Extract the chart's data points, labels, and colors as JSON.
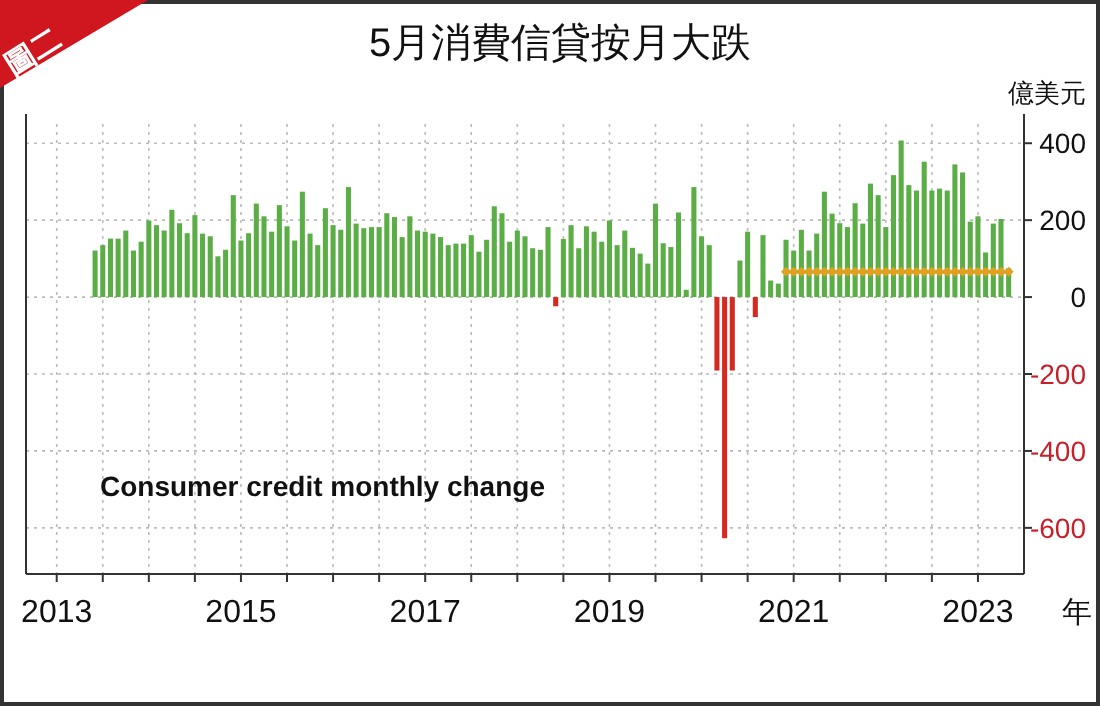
{
  "chart_data": {
    "type": "bar",
    "title": "5月消費信貸按月大跌",
    "ylabel": "億美元",
    "xlabel": "年",
    "annotations": [
      "圖二",
      "Consumer credit monthly change"
    ],
    "xlim": [
      "2012-09",
      "2023-07"
    ],
    "xticks": [
      {
        "value": "2013-01",
        "label": "2013"
      },
      {
        "value": "2013-07",
        "label": null
      },
      {
        "value": "2014-01",
        "label": null
      },
      {
        "value": "2014-07",
        "label": null
      },
      {
        "value": "2015-01",
        "label": "2015"
      },
      {
        "value": "2015-07",
        "label": null
      },
      {
        "value": "2016-01",
        "label": null
      },
      {
        "value": "2016-07",
        "label": null
      },
      {
        "value": "2017-01",
        "label": "2017"
      },
      {
        "value": "2017-07",
        "label": null
      },
      {
        "value": "2018-01",
        "label": null
      },
      {
        "value": "2018-07",
        "label": null
      },
      {
        "value": "2019-01",
        "label": "2019"
      },
      {
        "value": "2019-07",
        "label": null
      },
      {
        "value": "2020-01",
        "label": null
      },
      {
        "value": "2020-07",
        "label": null
      },
      {
        "value": "2021-01",
        "label": "2021"
      },
      {
        "value": "2021-07",
        "label": null
      },
      {
        "value": "2022-01",
        "label": null
      },
      {
        "value": "2022-07",
        "label": null
      },
      {
        "value": "2023-01",
        "label": "2023"
      }
    ],
    "ylim": [
      -720,
      450
    ],
    "yticks": [
      {
        "value": -600,
        "label": "-600"
      },
      {
        "value": -400,
        "label": "-400"
      },
      {
        "value": -200,
        "label": "-200"
      },
      0,
      200,
      400
    ],
    "grid": true,
    "series": [
      {
        "x": [
          "2013-06",
          "2013-07",
          "2013-08",
          "2013-09",
          "2013-10",
          "2013-11",
          "2013-12",
          "2014-01",
          "2014-02",
          "2014-03",
          "2014-04",
          "2014-05",
          "2014-06",
          "2014-07",
          "2014-08",
          "2014-09",
          "2014-10",
          "2014-11",
          "2014-12",
          "2015-01",
          "2015-02",
          "2015-03",
          "2015-04",
          "2015-05",
          "2015-06",
          "2015-07",
          "2015-08",
          "2015-09",
          "2015-10",
          "2015-11",
          "2015-12",
          "2016-01",
          "2016-02",
          "2016-03",
          "2016-04",
          "2016-05",
          "2016-06",
          "2016-07",
          "2016-08",
          "2016-09",
          "2016-10",
          "2016-11",
          "2016-12",
          "2017-01",
          "2017-02",
          "2017-03",
          "2017-04",
          "2017-05",
          "2017-06",
          "2017-07",
          "2017-08",
          "2017-09",
          "2017-10",
          "2017-11",
          "2017-12",
          "2018-01",
          "2018-02",
          "2018-03",
          "2018-04",
          "2018-05",
          "2018-06",
          "2018-07",
          "2018-08",
          "2018-09",
          "2018-10",
          "2018-11",
          "2018-12",
          "2019-01",
          "2019-02",
          "2019-03",
          "2019-04",
          "2019-05",
          "2019-06",
          "2019-07",
          "2019-08",
          "2019-09",
          "2019-10",
          "2019-11",
          "2019-12",
          "2020-01",
          "2020-02",
          "2020-03",
          "2020-04",
          "2020-05",
          "2020-06",
          "2020-07",
          "2020-08",
          "2020-09",
          "2020-10",
          "2020-11",
          "2020-12",
          "2021-01",
          "2021-02",
          "2021-03",
          "2021-04",
          "2021-05",
          "2021-06",
          "2021-07",
          "2021-08",
          "2021-09",
          "2021-10",
          "2021-11",
          "2021-12",
          "2022-01",
          "2022-02",
          "2022-03",
          "2022-04",
          "2022-05",
          "2022-06",
          "2022-07",
          "2022-08",
          "2022-09",
          "2022-10",
          "2022-11",
          "2022-12",
          "2023-01",
          "2023-02",
          "2023-03",
          "2023-04",
          "2023-05"
        ],
        "values": [
          121,
          135,
          152,
          152,
          173,
          121,
          144,
          199,
          187,
          173,
          227,
          192,
          166,
          213,
          165,
          158,
          106,
          123,
          265,
          147,
          166,
          243,
          210,
          170,
          239,
          184,
          147,
          274,
          165,
          135,
          231,
          187,
          175,
          286,
          191,
          179,
          182,
          182,
          218,
          208,
          156,
          210,
          173,
          170,
          165,
          156,
          135,
          139,
          139,
          161,
          118,
          149,
          236,
          218,
          144,
          173,
          158,
          127,
          123,
          182,
          -24,
          151,
          187,
          127,
          184,
          170,
          144,
          199,
          135,
          173,
          128,
          113,
          87,
          243,
          140,
          130,
          220,
          19,
          286,
          158,
          135,
          -191,
          -627,
          -191,
          95,
          170,
          -52,
          161,
          43,
          35,
          149,
          121,
          175,
          121,
          165,
          274,
          217,
          192,
          182,
          244,
          191,
          295,
          265,
          182,
          317,
          407,
          291,
          277,
          352,
          277,
          282,
          277,
          345,
          324,
          196,
          210,
          116,
          191,
          203,
          75
        ],
        "colors": [
          "#5aae45",
          "#5aae45",
          "#5aae45",
          "#5aae45",
          "#5aae45",
          "#5aae45",
          "#5aae45",
          "#5aae45",
          "#5aae45",
          "#5aae45",
          "#5aae45",
          "#5aae45",
          "#5aae45",
          "#5aae45",
          "#5aae45",
          "#5aae45",
          "#5aae45",
          "#5aae45",
          "#5aae45",
          "#5aae45",
          "#5aae45",
          "#5aae45",
          "#5aae45",
          "#5aae45",
          "#5aae45",
          "#5aae45",
          "#5aae45",
          "#5aae45",
          "#5aae45",
          "#5aae45",
          "#5aae45",
          "#5aae45",
          "#5aae45",
          "#5aae45",
          "#5aae45",
          "#5aae45",
          "#5aae45",
          "#5aae45",
          "#5aae45",
          "#5aae45",
          "#5aae45",
          "#5aae45",
          "#5aae45",
          "#5aae45",
          "#5aae45",
          "#5aae45",
          "#5aae45",
          "#5aae45",
          "#5aae45",
          "#5aae45",
          "#5aae45",
          "#5aae45",
          "#5aae45",
          "#5aae45",
          "#5aae45",
          "#5aae45",
          "#5aae45",
          "#5aae45",
          "#5aae45",
          "#5aae45",
          "#d42a22",
          "#5aae45",
          "#5aae45",
          "#5aae45",
          "#5aae45",
          "#5aae45",
          "#5aae45",
          "#5aae45",
          "#5aae45",
          "#5aae45",
          "#5aae45",
          "#5aae45",
          "#5aae45",
          "#5aae45",
          "#5aae45",
          "#5aae45",
          "#5aae45",
          "#5aae45",
          "#5aae45",
          "#5aae45",
          "#5aae45",
          "#d42a22",
          "#d42a22",
          "#d42a22",
          "#5aae45",
          "#5aae45",
          "#d42a22",
          "#5aae45",
          "#5aae45",
          "#5aae45",
          "#5aae45",
          "#5aae45",
          "#5aae45",
          "#5aae45",
          "#5aae45",
          "#5aae45",
          "#5aae45",
          "#5aae45",
          "#5aae45",
          "#5aae45",
          "#5aae45",
          "#5aae45",
          "#5aae45",
          "#5aae45",
          "#5aae45",
          "#5aae45",
          "#5aae45",
          "#5aae45",
          "#5aae45",
          "#5aae45",
          "#5aae45",
          "#5aae45",
          "#5aae45",
          "#5aae45",
          "#5aae45",
          "#5aae45",
          "#5aae45",
          "#5aae45",
          "#5aae45",
          "#5aae45"
        ]
      },
      {
        "type": "line",
        "color": "#e0a020",
        "marker": "diamond",
        "line_style": "solid",
        "x": [
          "2020-12",
          "2021-01",
          "2021-02",
          "2021-03",
          "2021-04",
          "2021-05",
          "2021-06",
          "2021-07",
          "2021-08",
          "2021-09",
          "2021-10",
          "2021-11",
          "2021-12",
          "2022-01",
          "2022-02",
          "2022-03",
          "2022-04",
          "2022-05",
          "2022-06",
          "2022-07",
          "2022-08",
          "2022-09",
          "2022-10",
          "2022-11",
          "2022-12",
          "2023-01",
          "2023-02",
          "2023-03",
          "2023-04",
          "2023-05"
        ],
        "values": [
          66,
          66,
          66,
          66,
          66,
          66,
          66,
          66,
          66,
          66,
          66,
          66,
          66,
          66,
          66,
          66,
          66,
          66,
          66,
          66,
          66,
          66,
          66,
          66,
          66,
          66,
          66,
          66,
          66,
          66
        ]
      }
    ]
  }
}
